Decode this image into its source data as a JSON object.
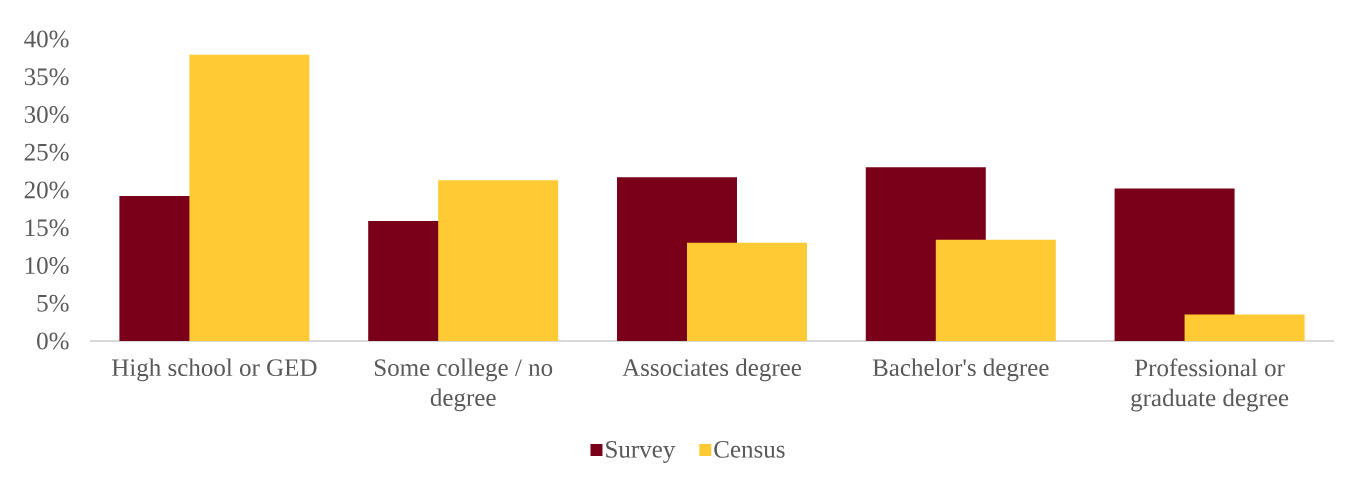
{
  "chart_data": {
    "type": "bar",
    "categories": [
      "High school or GED",
      "Some college / no degree",
      "Associates degree",
      "Bachelor's degree",
      "Professional or graduate degree"
    ],
    "series": [
      {
        "name": "Survey",
        "color": "#7a0019",
        "values": [
          19.2,
          15.9,
          21.7,
          23.0,
          20.2
        ]
      },
      {
        "name": "Census",
        "color": "#ffca33",
        "values": [
          37.9,
          21.3,
          13.0,
          13.4,
          3.5
        ]
      }
    ],
    "ylim": [
      0,
      40
    ],
    "yticks": [
      {
        "value": 0,
        "label": "0%"
      },
      {
        "value": 5,
        "label": "5%"
      },
      {
        "value": 10,
        "label": "10%"
      },
      {
        "value": 15,
        "label": "15%"
      },
      {
        "value": 20,
        "label": "20%"
      },
      {
        "value": 25,
        "label": "25%"
      },
      {
        "value": 30,
        "label": "30%"
      },
      {
        "value": 35,
        "label": "35%"
      },
      {
        "value": 40,
        "label": "40%"
      }
    ],
    "legend": "bottom"
  }
}
